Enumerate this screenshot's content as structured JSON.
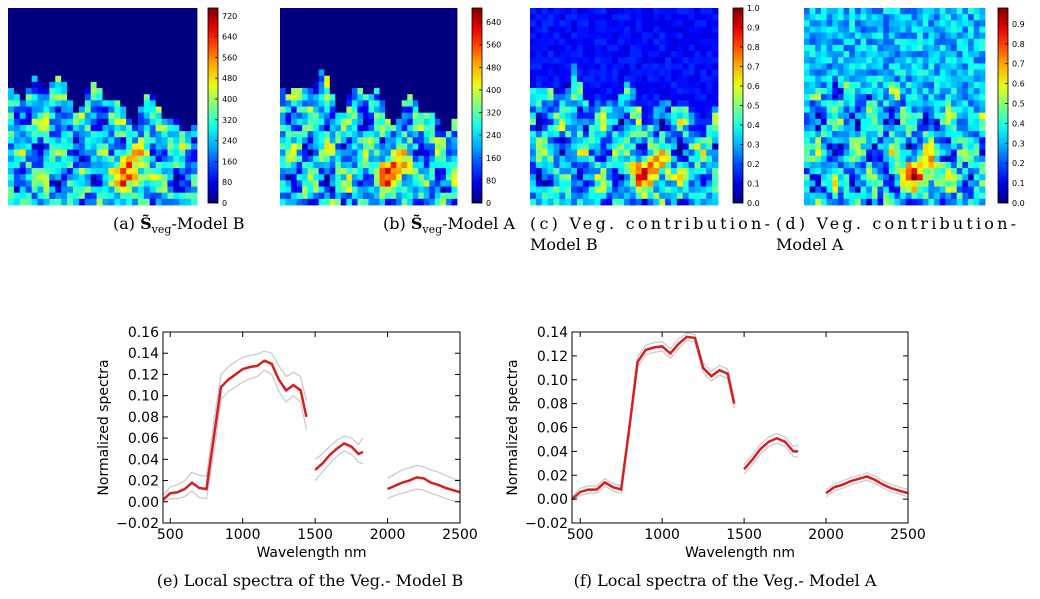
{
  "panels": [
    {
      "caption": {
        "prefix": "(a) ",
        "symbol": "S̃",
        "subscript": "veg",
        "suffix": "-Model B"
      },
      "colorbar": {
        "lim": [
          0,
          750
        ],
        "ticks": [
          0,
          80,
          160,
          240,
          320,
          400,
          480,
          560,
          640,
          720
        ]
      }
    },
    {
      "caption": {
        "prefix": "(b) ",
        "symbol": "S̃",
        "subscript": "veg",
        "suffix": "-Model A"
      },
      "colorbar": {
        "lim": [
          0,
          690
        ],
        "ticks": [
          0,
          80,
          160,
          240,
          320,
          400,
          480,
          560,
          640
        ]
      }
    },
    {
      "caption": {
        "lines": [
          "(c) Veg. contribution-",
          "Model B"
        ]
      },
      "colorbar": {
        "lim": [
          0,
          1
        ],
        "ticks": [
          {
            "value": 0,
            "label": "0.0"
          },
          0.1,
          0.2,
          0.3,
          0.4,
          0.5,
          0.6,
          0.7,
          0.8,
          0.9,
          {
            "value": 1,
            "label": "1.0"
          }
        ]
      }
    },
    {
      "caption": {
        "lines": [
          "(d) Veg. contribution-",
          "Model A"
        ]
      },
      "colorbar": {
        "lim": [
          0,
          0.98
        ],
        "ticks": [
          {
            "value": 0,
            "label": "0.0"
          },
          0.1,
          0.2,
          0.3,
          0.4,
          0.5,
          0.6,
          0.7,
          0.8,
          0.9
        ]
      }
    }
  ],
  "chart_data": [
    {
      "type": "line",
      "xlabel": "Wavelength nm",
      "ylabel": "Normalized spectra",
      "caption": "(e) Local spectra of the Veg.- Model B",
      "x": [
        450,
        500,
        550,
        600,
        650,
        700,
        750,
        800,
        850,
        900,
        950,
        1000,
        1050,
        1100,
        1150,
        1200,
        1250,
        1300,
        1350,
        1400,
        1440,
        1470,
        1500,
        1550,
        1600,
        1650,
        1700,
        1750,
        1800,
        1830,
        1900,
        2000,
        2050,
        2100,
        2150,
        2200,
        2250,
        2300,
        2350,
        2400,
        2450,
        2500
      ],
      "series": [
        {
          "color": "#b0b0b0",
          "values": [
            0.006,
            0.014,
            0.016,
            0.02,
            0.028,
            0.025,
            0.024,
            0.075,
            0.12,
            0.127,
            0.132,
            0.136,
            0.138,
            0.139,
            0.142,
            0.14,
            0.128,
            0.118,
            0.122,
            0.118,
            0.095,
            null,
            0.04,
            0.045,
            0.052,
            0.058,
            0.062,
            0.06,
            0.054,
            0.06,
            null,
            0.022,
            0.026,
            0.03,
            0.032,
            0.034,
            0.033,
            0.03,
            0.028,
            0.025,
            0.022,
            0.02
          ]
        },
        {
          "color": "#b0b0b0",
          "values": [
            0,
            0.003,
            0.003,
            0.005,
            0.01,
            0.004,
            0.003,
            0.045,
            0.096,
            0.104,
            0.108,
            0.113,
            0.116,
            0.118,
            0.124,
            0.12,
            0.104,
            0.094,
            0.1,
            0.094,
            0.068,
            null,
            0.02,
            0.028,
            0.036,
            0.043,
            0.048,
            0.045,
            0.037,
            0.036,
            null,
            0.003,
            0.006,
            0.008,
            0.01,
            0.012,
            0.011,
            0.008,
            0.006,
            0.003,
            0.001,
            0
          ]
        },
        {
          "color": "#d42020",
          "values": [
            0.002,
            0.008,
            0.009,
            0.012,
            0.018,
            0.013,
            0.012,
            0.06,
            0.108,
            0.115,
            0.12,
            0.125,
            0.127,
            0.128,
            0.133,
            0.13,
            0.115,
            0.105,
            0.11,
            0.105,
            0.08,
            null,
            0.03,
            0.036,
            0.044,
            0.05,
            0.055,
            0.052,
            0.045,
            0.047,
            null,
            0.012,
            0.015,
            0.018,
            0.02,
            0.023,
            0.022,
            0.018,
            0.016,
            0.013,
            0.011,
            0.009
          ]
        }
      ],
      "xlim": [
        450,
        2500
      ],
      "xticks": [
        500,
        1000,
        1500,
        2000,
        2500
      ],
      "ylim": [
        -0.02,
        0.16
      ],
      "yticks": [
        {
          "value": -0.02,
          "label": "−0.02"
        },
        {
          "value": 0,
          "label": "0.00"
        },
        0.02,
        0.04,
        0.06,
        0.08,
        {
          "value": 0.1,
          "label": "0.10"
        },
        0.12,
        0.14,
        0.16
      ]
    },
    {
      "type": "line",
      "xlabel": "Wavelength nm",
      "ylabel": "Normalized spectra",
      "caption": "(f) Local spectra of the Veg.- Model A",
      "x": [
        450,
        500,
        550,
        600,
        650,
        700,
        750,
        800,
        850,
        900,
        950,
        1000,
        1050,
        1100,
        1150,
        1200,
        1250,
        1300,
        1350,
        1400,
        1440,
        1470,
        1500,
        1550,
        1600,
        1650,
        1700,
        1750,
        1800,
        1830,
        1900,
        2000,
        2050,
        2100,
        2150,
        2200,
        2250,
        2300,
        2350,
        2400,
        2450,
        2500
      ],
      "series": [
        {
          "color": "#b0b0b0",
          "values": [
            0.002,
            0.009,
            0.011,
            0.011,
            0.017,
            0.013,
            0.011,
            0.064,
            0.119,
            0.129,
            0.131,
            0.132,
            0.126,
            0.134,
            0.139,
            0.138,
            0.114,
            0.107,
            0.112,
            0.109,
            0.084,
            null,
            0.029,
            0.037,
            0.046,
            0.052,
            0.055,
            0.052,
            0.044,
            0.045,
            null,
            0.008,
            0.013,
            0.015,
            0.018,
            0.02,
            0.022,
            0.019,
            0.015,
            0.012,
            0.01,
            0.008
          ]
        },
        {
          "color": "#b0b0b0",
          "values": [
            -0.001,
            0.003,
            0.005,
            0.005,
            0.011,
            0.007,
            0.005,
            0.056,
            0.111,
            0.121,
            0.123,
            0.124,
            0.118,
            0.126,
            0.133,
            0.132,
            0.106,
            0.099,
            0.104,
            0.101,
            0.076,
            null,
            0.021,
            0.029,
            0.038,
            0.044,
            0.047,
            0.044,
            0.036,
            0.035,
            null,
            0.002,
            0.007,
            0.009,
            0.012,
            0.014,
            0.016,
            0.013,
            0.009,
            0.006,
            0.004,
            0.002
          ]
        },
        {
          "color": "#d42020",
          "values": [
            0,
            0.006,
            0.008,
            0.008,
            0.014,
            0.01,
            0.008,
            0.06,
            0.115,
            0.125,
            0.127,
            0.128,
            0.122,
            0.13,
            0.136,
            0.135,
            0.11,
            0.103,
            0.108,
            0.105,
            0.08,
            null,
            0.025,
            0.033,
            0.042,
            0.048,
            0.051,
            0.048,
            0.04,
            0.04,
            null,
            0.005,
            0.01,
            0.012,
            0.015,
            0.017,
            0.019,
            0.016,
            0.012,
            0.009,
            0.007,
            0.005
          ]
        }
      ],
      "xlim": [
        450,
        2500
      ],
      "xticks": [
        500,
        1000,
        1500,
        2000,
        2500
      ],
      "ylim": [
        -0.02,
        0.14
      ],
      "yticks": [
        {
          "value": -0.02,
          "label": "−0.02"
        },
        {
          "value": 0,
          "label": "0.00"
        },
        0.02,
        0.04,
        0.06,
        0.08,
        {
          "value": 0.1,
          "label": "0.10"
        },
        0.12,
        0.14
      ]
    }
  ]
}
